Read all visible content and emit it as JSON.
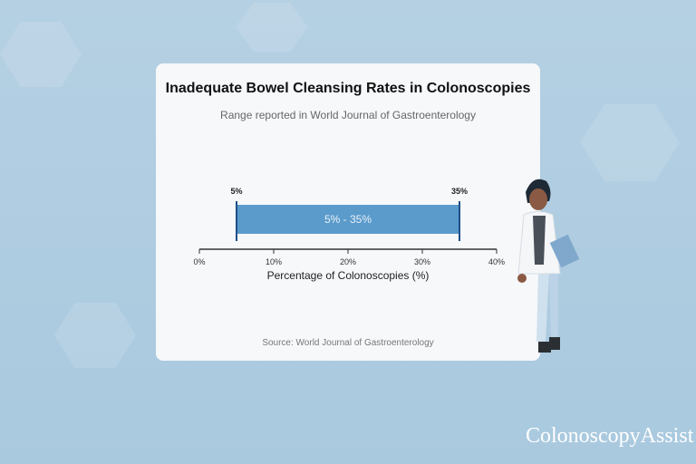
{
  "chart_data": {
    "type": "bar",
    "title": "Inadequate Bowel Cleansing Rates in Colonoscopies",
    "subtitle": "Range reported in World Journal of Gastroenterology",
    "xlabel": "Percentage of Colonoscopies (%)",
    "xlim": [
      0,
      40
    ],
    "xticks": [
      "0%",
      "10%",
      "20%",
      "30%",
      "40%"
    ],
    "range": {
      "low": 5,
      "high": 35,
      "low_label": "5%",
      "high_label": "35%",
      "bar_label": "5% - 35%"
    },
    "source": "Source: World Journal of Gastroenterology",
    "bar_color": "#5b9bcb",
    "marker_color": "#1d4f85"
  },
  "brand": {
    "logo_text": "ColonoscopyAssist"
  }
}
